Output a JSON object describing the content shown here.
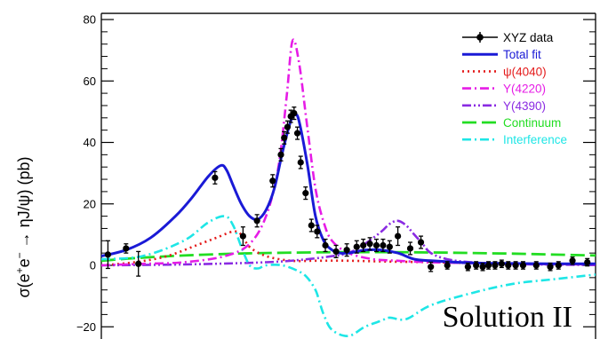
{
  "chart_data": {
    "type": "line",
    "ylabel_parts": [
      "σ(e",
      "+",
      "e",
      "−",
      " → ηJ/ψ) (pb)"
    ],
    "annotation": "Solution II",
    "xlim": [
      4.0,
      4.6
    ],
    "ylim": [
      -25,
      82
    ],
    "yticks": [
      -20,
      0,
      20,
      40,
      60,
      80
    ],
    "tick_labels": [
      "−20",
      "0",
      "20",
      "40",
      "60",
      "80"
    ],
    "grid": false,
    "legend_position": "top-right",
    "legend": [
      {
        "label": "XYZ data",
        "color": "#000000",
        "style": "marker"
      },
      {
        "label": "Total fit",
        "color": "#1a1ad6",
        "style": "solid"
      },
      {
        "label": "ψ(4040)",
        "color": "#e41a1a",
        "style": "dotted"
      },
      {
        "label": "Y(4220)",
        "color": "#e61ce6",
        "style": "dashdot"
      },
      {
        "label": "Y(4390)",
        "color": "#8a2be2",
        "style": "dashdotdot"
      },
      {
        "label": "Continuum",
        "color": "#22dd22",
        "style": "dashed"
      },
      {
        "label": "Interference",
        "color": "#1ee6e6",
        "style": "dashdot"
      }
    ],
    "data_points": [
      {
        "x": 4.008,
        "y": 3.5,
        "err": 4.5
      },
      {
        "x": 4.03,
        "y": 5.5,
        "err": 1.5
      },
      {
        "x": 4.045,
        "y": 0.5,
        "err": 4.0
      },
      {
        "x": 4.138,
        "y": 28.5,
        "err": 2.0
      },
      {
        "x": 4.172,
        "y": 9.5,
        "err": 3.0
      },
      {
        "x": 4.189,
        "y": 14.5,
        "err": 2.0
      },
      {
        "x": 4.208,
        "y": 27.5,
        "err": 2.0
      },
      {
        "x": 4.218,
        "y": 36.0,
        "err": 2.0
      },
      {
        "x": 4.222,
        "y": 41.5,
        "err": 2.0
      },
      {
        "x": 4.226,
        "y": 45.0,
        "err": 2.0
      },
      {
        "x": 4.23,
        "y": 48.5,
        "err": 2.0
      },
      {
        "x": 4.234,
        "y": 49.5,
        "err": 2.0
      },
      {
        "x": 4.238,
        "y": 43.0,
        "err": 2.0
      },
      {
        "x": 4.242,
        "y": 33.5,
        "err": 2.0
      },
      {
        "x": 4.248,
        "y": 23.5,
        "err": 2.0
      },
      {
        "x": 4.255,
        "y": 13.0,
        "err": 2.0
      },
      {
        "x": 4.262,
        "y": 11.0,
        "err": 2.0
      },
      {
        "x": 4.272,
        "y": 6.5,
        "err": 2.0
      },
      {
        "x": 4.285,
        "y": 4.5,
        "err": 2.0
      },
      {
        "x": 4.298,
        "y": 5.0,
        "err": 2.0
      },
      {
        "x": 4.31,
        "y": 6.0,
        "err": 2.0
      },
      {
        "x": 4.318,
        "y": 6.5,
        "err": 2.0
      },
      {
        "x": 4.326,
        "y": 7.0,
        "err": 2.0
      },
      {
        "x": 4.334,
        "y": 6.5,
        "err": 2.0
      },
      {
        "x": 4.342,
        "y": 6.5,
        "err": 2.0
      },
      {
        "x": 4.35,
        "y": 6.0,
        "err": 2.0
      },
      {
        "x": 4.36,
        "y": 9.5,
        "err": 3.0
      },
      {
        "x": 4.375,
        "y": 5.5,
        "err": 2.0
      },
      {
        "x": 4.388,
        "y": 7.5,
        "err": 2.0
      },
      {
        "x": 4.4,
        "y": -0.5,
        "err": 1.5
      },
      {
        "x": 4.42,
        "y": 0.0,
        "err": 1.2
      },
      {
        "x": 4.445,
        "y": -0.5,
        "err": 1.2
      },
      {
        "x": 4.455,
        "y": 0.0,
        "err": 1.2
      },
      {
        "x": 4.463,
        "y": -0.5,
        "err": 1.2
      },
      {
        "x": 4.47,
        "y": 0.0,
        "err": 1.2
      },
      {
        "x": 4.478,
        "y": 0.0,
        "err": 1.2
      },
      {
        "x": 4.486,
        "y": 0.5,
        "err": 1.2
      },
      {
        "x": 4.494,
        "y": 0.0,
        "err": 1.2
      },
      {
        "x": 4.503,
        "y": 0.0,
        "err": 1.2
      },
      {
        "x": 4.512,
        "y": 0.0,
        "err": 1.2
      },
      {
        "x": 4.528,
        "y": 0.0,
        "err": 1.2
      },
      {
        "x": 4.545,
        "y": -0.5,
        "err": 1.2
      },
      {
        "x": 4.555,
        "y": 0.0,
        "err": 1.2
      },
      {
        "x": 4.572,
        "y": 1.5,
        "err": 1.2
      },
      {
        "x": 4.59,
        "y": 1.0,
        "err": 1.2
      }
    ],
    "series": [
      {
        "name": "Total fit",
        "x": [
          4.0,
          4.03,
          4.06,
          4.09,
          4.11,
          4.13,
          4.145,
          4.152,
          4.16,
          4.17,
          4.18,
          4.19,
          4.2,
          4.21,
          4.22,
          4.23,
          4.235,
          4.24,
          4.25,
          4.26,
          4.27,
          4.28,
          4.29,
          4.3,
          4.31,
          4.32,
          4.34,
          4.36,
          4.38,
          4.4,
          4.45,
          4.5,
          4.55,
          4.6
        ],
        "y": [
          3,
          5,
          9,
          16,
          22,
          29,
          32.5,
          31,
          26,
          20,
          16,
          15,
          18,
          25,
          37,
          47,
          49,
          47,
          33,
          16,
          8,
          5,
          4,
          4,
          4.5,
          5,
          5,
          4,
          2,
          1.5,
          0.8,
          0.6,
          0.5,
          0.5
        ]
      },
      {
        "name": "ψ(4040)",
        "x": [
          4.0,
          4.04,
          4.08,
          4.12,
          4.14,
          4.16,
          4.17,
          4.18,
          4.2,
          4.23,
          4.26,
          4.3,
          4.35,
          4.4,
          4.5,
          4.6
        ],
        "y": [
          0,
          1,
          3,
          7,
          9,
          11,
          10,
          6,
          3,
          1.5,
          1.5,
          1.5,
          1.2,
          1.0,
          0.5,
          0.3
        ]
      },
      {
        "name": "Y(4220)",
        "x": [
          4.0,
          4.05,
          4.1,
          4.15,
          4.18,
          4.2,
          4.215,
          4.225,
          4.232,
          4.24,
          4.25,
          4.26,
          4.27,
          4.28,
          4.3,
          4.33,
          4.36,
          4.4,
          4.5,
          4.6
        ],
        "y": [
          0,
          0.5,
          1,
          3,
          7,
          16,
          32,
          55,
          73,
          66,
          45,
          25,
          14,
          8,
          4,
          2,
          1.5,
          1,
          0.5,
          0.3
        ]
      },
      {
        "name": "Y(4390)",
        "x": [
          4.0,
          4.1,
          4.2,
          4.25,
          4.28,
          4.3,
          4.32,
          4.34,
          4.35,
          4.36,
          4.37,
          4.38,
          4.39,
          4.4,
          4.42,
          4.45,
          4.5,
          4.6
        ],
        "y": [
          0,
          0.3,
          1,
          2,
          3,
          4,
          7,
          11,
          13.5,
          14.5,
          13,
          10,
          7,
          4,
          2,
          1,
          0.4,
          0.1
        ]
      },
      {
        "name": "Continuum",
        "x": [
          4.0,
          4.05,
          4.1,
          4.15,
          4.2,
          4.25,
          4.3,
          4.35,
          4.4,
          4.45,
          4.5,
          4.55,
          4.6
        ],
        "y": [
          1.5,
          2.5,
          3.2,
          3.7,
          4.0,
          4.2,
          4.3,
          4.3,
          4.2,
          4.0,
          3.8,
          3.5,
          3.2
        ]
      },
      {
        "name": "Interference",
        "x": [
          4.0,
          4.05,
          4.1,
          4.13,
          4.15,
          4.16,
          4.17,
          4.18,
          4.19,
          4.2,
          4.22,
          4.24,
          4.25,
          4.26,
          4.265,
          4.27,
          4.28,
          4.3,
          4.32,
          4.34,
          4.35,
          4.37,
          4.4,
          4.45,
          4.5,
          4.55,
          4.6
        ],
        "y": [
          2,
          3,
          8,
          14,
          16,
          13,
          6,
          0,
          -1,
          0,
          0,
          -2,
          -4,
          -8,
          -12,
          -16,
          -21,
          -23,
          -20,
          -18,
          -17,
          -17.5,
          -13,
          -9,
          -6,
          -4.5,
          -3
        ]
      }
    ]
  }
}
